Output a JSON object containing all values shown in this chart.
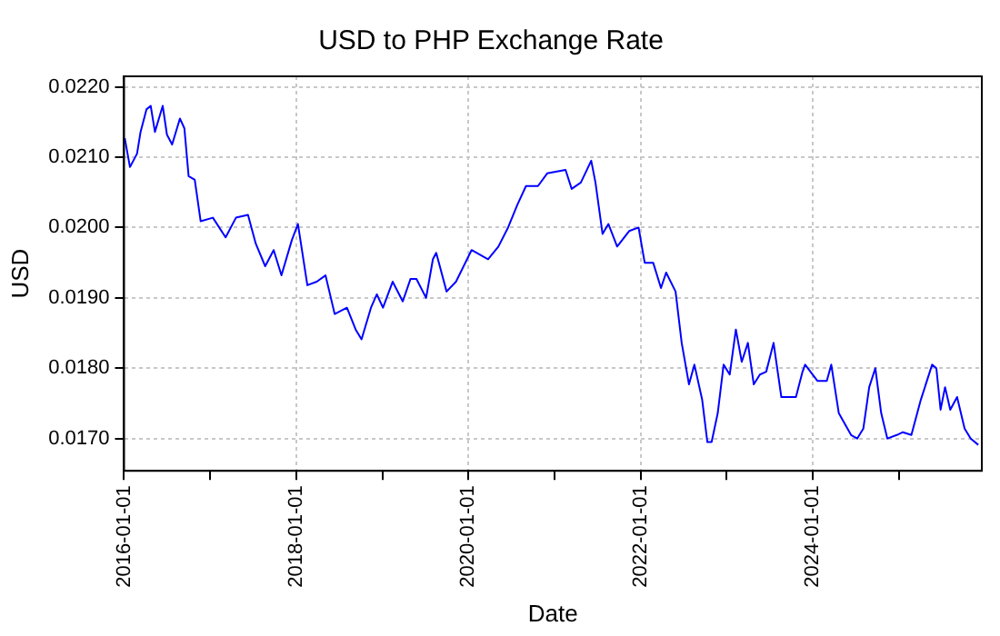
{
  "chart_data": {
    "type": "line",
    "title": "USD to PHP Exchange Rate",
    "xlabel": "Date",
    "ylabel": "USD",
    "x": [
      "2016-01-04",
      "2016-01-26",
      "2016-02-25",
      "2016-03-11",
      "2016-04-05",
      "2016-04-23",
      "2016-05-11",
      "2016-06-13",
      "2016-07-01",
      "2016-07-23",
      "2016-08-25",
      "2016-09-13",
      "2016-10-01",
      "2016-10-27",
      "2016-11-21",
      "2017-01-12",
      "2017-03-07",
      "2017-04-20",
      "2017-06-10",
      "2017-07-13",
      "2017-08-22",
      "2017-09-27",
      "2017-10-30",
      "2017-12-13",
      "2018-01-08",
      "2018-02-17",
      "2018-03-29",
      "2018-05-05",
      "2018-06-13",
      "2018-08-04",
      "2018-09-10",
      "2018-10-05",
      "2018-11-14",
      "2018-12-09",
      "2019-01-04",
      "2019-02-14",
      "2019-03-29",
      "2019-05-01",
      "2019-05-26",
      "2019-07-06",
      "2019-08-04",
      "2019-08-18",
      "2019-10-01",
      "2019-11-10",
      "2020-01-15",
      "2020-03-25",
      "2020-05-08",
      "2020-06-18",
      "2020-07-27",
      "2020-09-02",
      "2020-10-23",
      "2020-12-01",
      "2021-02-17",
      "2021-03-15",
      "2021-04-23",
      "2021-06-06",
      "2021-06-24",
      "2021-07-24",
      "2021-08-18",
      "2021-09-24",
      "2021-11-14",
      "2021-12-24",
      "2022-01-19",
      "2022-02-24",
      "2022-03-29",
      "2022-04-20",
      "2022-05-30",
      "2022-06-25",
      "2022-07-26",
      "2022-08-18",
      "2022-09-20",
      "2022-10-12",
      "2022-10-30",
      "2022-11-25",
      "2022-12-20",
      "2023-01-15",
      "2023-02-10",
      "2023-03-07",
      "2023-04-02",
      "2023-04-27",
      "2023-05-23",
      "2023-06-19",
      "2023-07-20",
      "2023-08-22",
      "2023-10-23",
      "2023-11-20",
      "2023-12-01",
      "2024-01-22",
      "2024-03-02",
      "2024-03-21",
      "2024-04-22",
      "2024-06-13",
      "2024-07-09",
      "2024-08-04",
      "2024-08-29",
      "2024-09-24",
      "2024-10-19",
      "2024-11-14",
      "2024-12-24",
      "2025-01-19",
      "2025-02-24",
      "2025-04-05",
      "2025-05-23",
      "2025-06-10",
      "2025-06-28",
      "2025-07-17",
      "2025-08-08",
      "2025-09-06",
      "2025-10-08",
      "2025-11-03",
      "2025-12-05"
    ],
    "series": [
      {
        "color": "#0000ff",
        "values": [
          0.02127,
          0.02086,
          0.02105,
          0.02136,
          0.02168,
          0.02173,
          0.02136,
          0.02173,
          0.02132,
          0.02118,
          0.02155,
          0.02141,
          0.02073,
          0.02068,
          0.02009,
          0.02014,
          0.01986,
          0.02014,
          0.02018,
          0.01977,
          0.01945,
          0.01968,
          0.01932,
          0.01982,
          0.02005,
          0.01918,
          0.01923,
          0.01932,
          0.01877,
          0.01886,
          0.01855,
          0.01841,
          0.01886,
          0.01905,
          0.01886,
          0.01923,
          0.01895,
          0.01927,
          0.01927,
          0.019,
          0.01955,
          0.01964,
          0.01909,
          0.01923,
          0.01968,
          0.01955,
          0.01973,
          0.02,
          0.02032,
          0.02059,
          0.02059,
          0.02077,
          0.02082,
          0.02055,
          0.02064,
          0.02095,
          0.02064,
          0.01991,
          0.02005,
          0.01973,
          0.01995,
          0.02,
          0.0195,
          0.0195,
          0.01914,
          0.01936,
          0.01909,
          0.01836,
          0.01777,
          0.01805,
          0.01755,
          0.01695,
          0.01695,
          0.01736,
          0.01805,
          0.01791,
          0.01855,
          0.01809,
          0.01836,
          0.01777,
          0.01791,
          0.01795,
          0.01836,
          0.01759,
          0.01759,
          0.01795,
          0.01805,
          0.01782,
          0.01782,
          0.01805,
          0.01736,
          0.01705,
          0.017,
          0.01714,
          0.01773,
          0.018,
          0.01736,
          0.017,
          0.01705,
          0.01709,
          0.01705,
          0.01755,
          0.01805,
          0.018,
          0.01741,
          0.01773,
          0.01741,
          0.01759,
          0.01714,
          0.017,
          0.01691
        ]
      }
    ],
    "xlim": [
      "2016-01-01",
      "2025-12-20"
    ],
    "xticks": [
      "2016-01-01",
      {
        "value": "2017-01-01",
        "label": null
      },
      "2018-01-01",
      {
        "value": "2019-01-01",
        "label": null
      },
      "2020-01-01",
      {
        "value": "2021-01-01",
        "label": null
      },
      "2022-01-01",
      {
        "value": "2023-01-01",
        "label": null
      },
      "2024-01-01",
      {
        "value": "2025-01-01",
        "label": null
      }
    ],
    "ylim": [
      0.01654,
      0.02215
    ],
    "yticks": [
      {
        "value": 0.017,
        "label": "0.0170"
      },
      {
        "value": 0.018,
        "label": "0.0180"
      },
      {
        "value": 0.019,
        "label": "0.0190"
      },
      {
        "value": 0.02,
        "label": "0.0200"
      },
      {
        "value": 0.021,
        "label": "0.0210"
      },
      {
        "value": 0.022,
        "label": "0.0220"
      }
    ],
    "grid": true,
    "marker": "none",
    "line_style": "solid"
  }
}
